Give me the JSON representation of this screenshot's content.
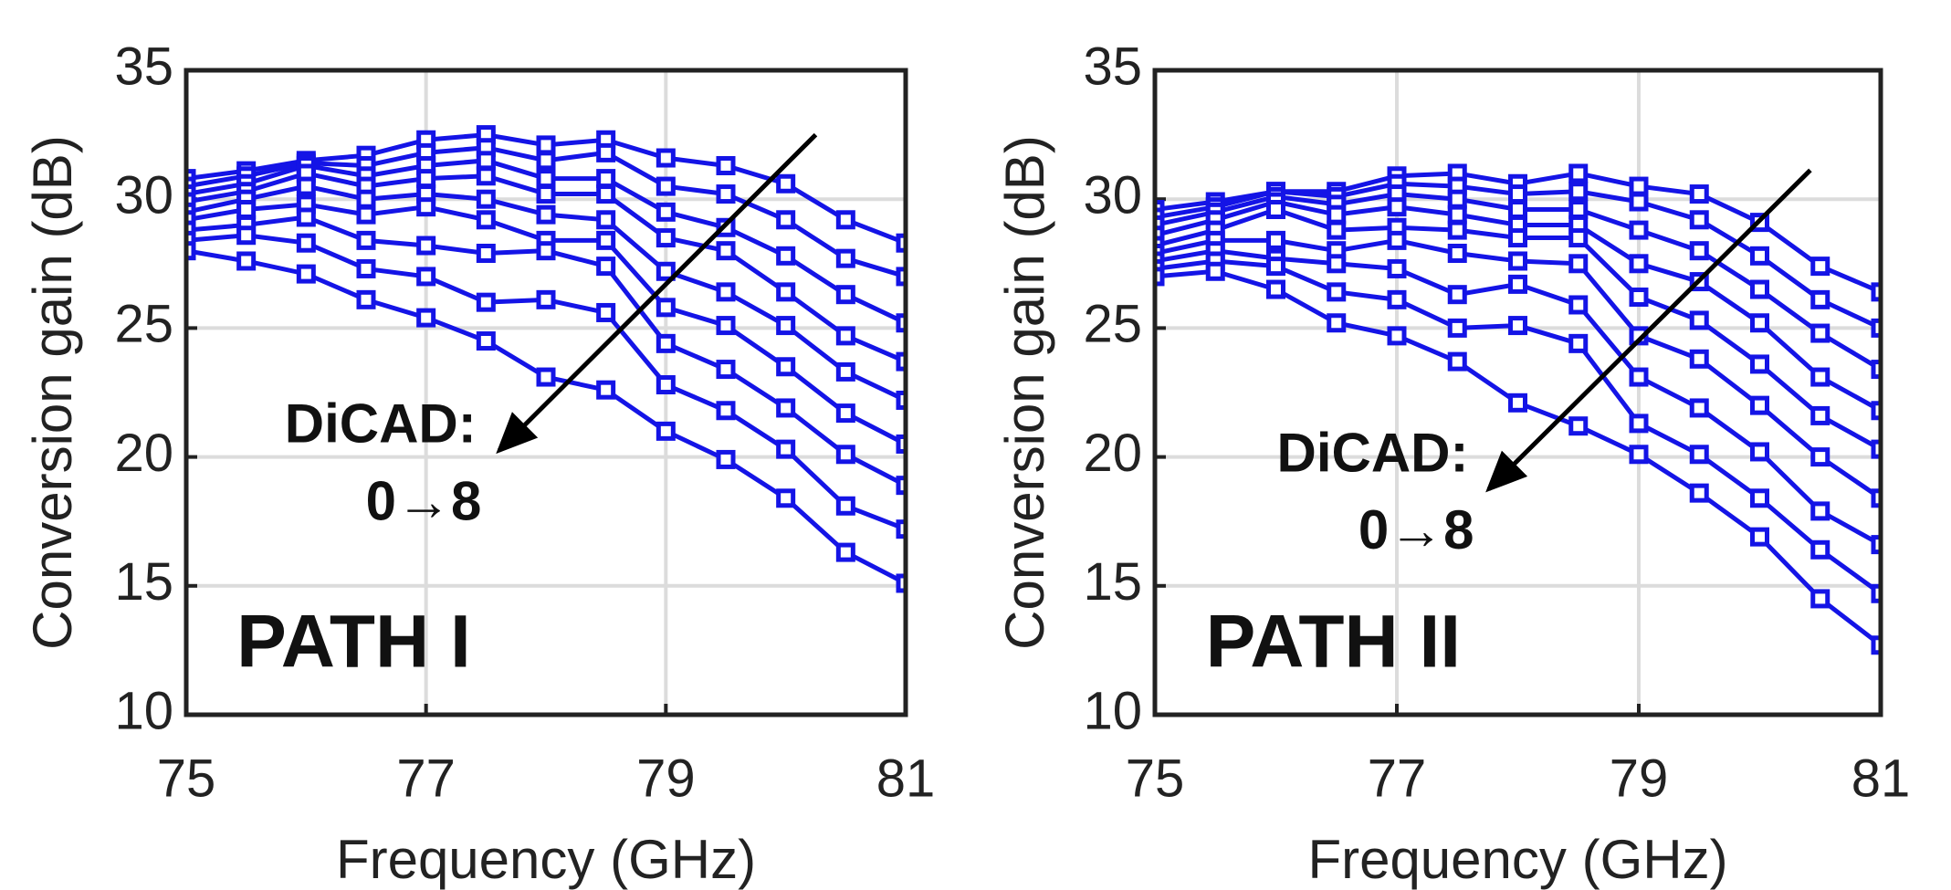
{
  "chart_data": [
    {
      "type": "line",
      "label": "PATH I",
      "annotation": [
        "DiCAD:",
        "0→8"
      ],
      "xlabel": "Frequency (GHz)",
      "ylabel": "Conversion gain (dB)",
      "x": [
        75,
        75.5,
        76,
        76.5,
        77,
        77.5,
        78,
        78.5,
        79,
        79.5,
        80,
        80.5,
        81
      ],
      "xlim": [
        75,
        81
      ],
      "ylim": [
        10,
        35
      ],
      "xticks": [
        75,
        77,
        79,
        81
      ],
      "yticks": [
        10,
        15,
        20,
        25,
        30,
        35
      ],
      "grid": true,
      "series": [
        {
          "color": "#1414e6",
          "values": [
            30.8,
            31.1,
            31.5,
            31.7,
            32.3,
            32.5,
            32.1,
            32.3,
            31.6,
            31.3,
            30.6,
            29.2,
            28.3
          ]
        },
        {
          "color": "#1414e6",
          "values": [
            30.5,
            30.9,
            31.4,
            31.3,
            31.8,
            32.0,
            31.5,
            31.8,
            30.5,
            30.2,
            29.2,
            27.7,
            27.0
          ]
        },
        {
          "color": "#1414e6",
          "values": [
            30.2,
            30.6,
            31.3,
            30.9,
            31.3,
            31.5,
            30.8,
            30.8,
            29.5,
            28.9,
            27.8,
            26.3,
            25.2
          ]
        },
        {
          "color": "#1414e6",
          "values": [
            29.9,
            30.3,
            31.0,
            30.5,
            30.8,
            30.9,
            30.2,
            30.2,
            28.5,
            28.0,
            26.4,
            24.7,
            23.7
          ]
        },
        {
          "color": "#1414e6",
          "values": [
            29.5,
            30.0,
            30.5,
            30.0,
            30.2,
            30.0,
            29.4,
            29.2,
            27.2,
            26.4,
            25.1,
            23.3,
            22.2
          ]
        },
        {
          "color": "#1414e6",
          "values": [
            29.2,
            29.6,
            29.8,
            29.4,
            29.7,
            29.2,
            28.4,
            28.4,
            25.8,
            25.1,
            23.5,
            21.7,
            20.5
          ]
        },
        {
          "color": "#1414e6",
          "values": [
            28.8,
            29.0,
            29.3,
            28.4,
            28.2,
            27.9,
            28.0,
            27.4,
            24.4,
            23.4,
            21.9,
            20.1,
            18.9
          ]
        },
        {
          "color": "#1414e6",
          "values": [
            28.4,
            28.6,
            28.3,
            27.3,
            27.0,
            26.0,
            26.1,
            25.6,
            22.8,
            21.8,
            20.3,
            18.1,
            17.2
          ]
        },
        {
          "color": "#1414e6",
          "values": [
            28.0,
            27.6,
            27.1,
            26.1,
            25.4,
            24.5,
            23.1,
            22.6,
            21.0,
            19.9,
            18.4,
            16.3,
            15.1
          ]
        }
      ]
    },
    {
      "type": "line",
      "label": "PATH II",
      "annotation": [
        "DiCAD:",
        "0→8"
      ],
      "xlabel": "Frequency (GHz)",
      "ylabel": "Conversion gain (dB)",
      "x": [
        75,
        75.5,
        76,
        76.5,
        77,
        77.5,
        78,
        78.5,
        79,
        79.5,
        80,
        80.5,
        81
      ],
      "xlim": [
        75,
        81
      ],
      "ylim": [
        10,
        35
      ],
      "xticks": [
        75,
        77,
        79,
        81
      ],
      "yticks": [
        10,
        15,
        20,
        25,
        30,
        35
      ],
      "grid": true,
      "series": [
        {
          "color": "#1414e6",
          "values": [
            29.6,
            29.9,
            30.3,
            30.3,
            30.9,
            31.0,
            30.6,
            31.0,
            30.5,
            30.2,
            29.1,
            27.4,
            26.4
          ]
        },
        {
          "color": "#1414e6",
          "values": [
            29.3,
            29.7,
            30.3,
            30.1,
            30.6,
            30.5,
            30.2,
            30.3,
            29.9,
            29.2,
            27.8,
            26.1,
            25.0
          ]
        },
        {
          "color": "#1414e6",
          "values": [
            29.0,
            29.5,
            30.1,
            29.8,
            30.2,
            30.0,
            29.6,
            29.6,
            28.8,
            28.0,
            26.5,
            24.8,
            23.4
          ]
        },
        {
          "color": "#1414e6",
          "values": [
            28.6,
            29.2,
            29.9,
            29.4,
            29.7,
            29.4,
            29.0,
            29.0,
            27.5,
            26.8,
            25.2,
            23.1,
            21.8
          ]
        },
        {
          "color": "#1414e6",
          "values": [
            28.2,
            28.8,
            29.6,
            28.8,
            28.9,
            28.8,
            28.5,
            28.5,
            26.2,
            25.3,
            23.6,
            21.6,
            20.3
          ]
        },
        {
          "color": "#1414e6",
          "values": [
            27.9,
            28.4,
            28.4,
            28.0,
            28.4,
            27.9,
            27.6,
            27.5,
            24.7,
            23.8,
            22.0,
            20.0,
            18.4
          ]
        },
        {
          "color": "#1414e6",
          "values": [
            27.6,
            28.0,
            27.7,
            27.5,
            27.3,
            26.3,
            26.7,
            25.9,
            23.1,
            21.9,
            20.2,
            17.9,
            16.6
          ]
        },
        {
          "color": "#1414e6",
          "values": [
            27.3,
            27.6,
            27.4,
            26.4,
            26.1,
            25.0,
            25.1,
            24.4,
            21.3,
            20.1,
            18.4,
            16.4,
            14.7
          ]
        },
        {
          "color": "#1414e6",
          "values": [
            27.0,
            27.2,
            26.5,
            25.2,
            24.7,
            23.7,
            22.1,
            21.2,
            20.1,
            18.6,
            16.9,
            14.5,
            12.7
          ]
        }
      ]
    }
  ]
}
